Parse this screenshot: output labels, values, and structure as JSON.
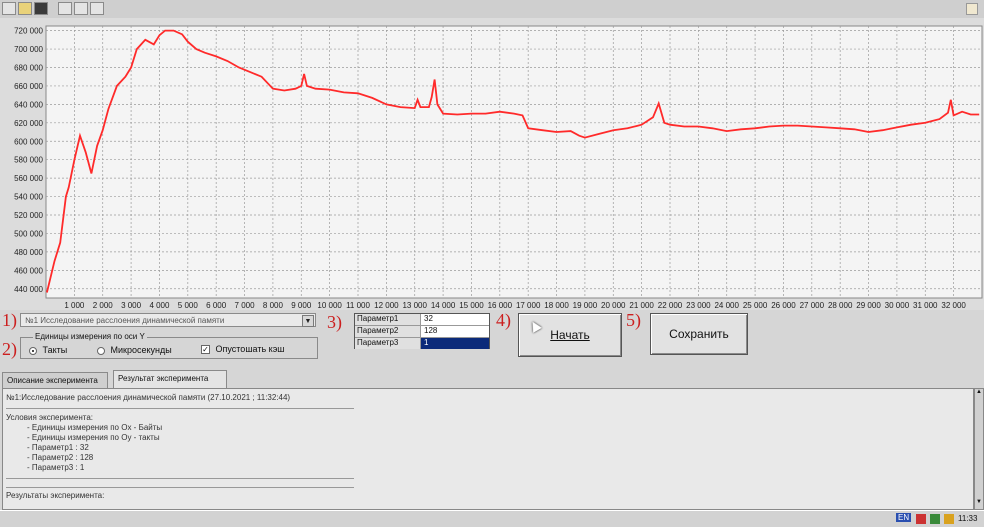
{
  "toolbar": {
    "icons": [
      "new-icon",
      "open-icon",
      "save-icon",
      "window-icon",
      "list-icon",
      "split-icon"
    ]
  },
  "chart_data": {
    "type": "line",
    "title": "",
    "xlabel": "",
    "ylabel": "",
    "grid": true,
    "line_color": "#ff2a2a",
    "xlim": [
      0,
      33000
    ],
    "ylim": [
      430000,
      725000
    ],
    "x_ticks": [
      1000,
      2000,
      3000,
      4000,
      5000,
      6000,
      7000,
      8000,
      9000,
      10000,
      11000,
      12000,
      13000,
      14000,
      15000,
      16000,
      17000,
      18000,
      19000,
      20000,
      21000,
      22000,
      23000,
      24000,
      25000,
      26000,
      27000,
      28000,
      29000,
      30000,
      31000,
      32000
    ],
    "x_tick_labels": [
      "1 000",
      "2 000",
      "3 000",
      "4 000",
      "5 000",
      "6 000",
      "7 000",
      "8 000",
      "9 000",
      "10 000",
      "11 000",
      "12 000",
      "13 000",
      "14 000",
      "15 000",
      "16 000",
      "17 000",
      "18 000",
      "19 000",
      "20 000",
      "21 000",
      "22 000",
      "23 000",
      "24 000",
      "25 000",
      "26 000",
      "27 000",
      "28 000",
      "29 000",
      "30 000",
      "31 000",
      "32 000"
    ],
    "y_ticks": [
      440000,
      460000,
      480000,
      500000,
      520000,
      540000,
      560000,
      580000,
      600000,
      620000,
      640000,
      660000,
      680000,
      700000,
      720000
    ],
    "y_tick_labels": [
      "440 000",
      "460 000",
      "480 000",
      "500 000",
      "520 000",
      "540 000",
      "560 000",
      "580 000",
      "600 000",
      "620 000",
      "640 000",
      "660 000",
      "680 000",
      "700 000",
      "720 000"
    ],
    "x": [
      32,
      300,
      500,
      700,
      800,
      1000,
      1200,
      1400,
      1600,
      1800,
      2000,
      2200,
      2500,
      2800,
      3000,
      3200,
      3500,
      3800,
      4000,
      4200,
      4500,
      4800,
      5000,
      5300,
      5600,
      6000,
      6400,
      6800,
      7200,
      7600,
      8000,
      8400,
      8800,
      9000,
      9100,
      9200,
      9500,
      10000,
      10500,
      11000,
      11500,
      12000,
      12500,
      13000,
      13100,
      13200,
      13500,
      13600,
      13700,
      13800,
      14000,
      14500,
      15000,
      15500,
      16000,
      16500,
      16800,
      17000,
      17500,
      18000,
      18500,
      18800,
      19000,
      19500,
      20000,
      20500,
      21000,
      21400,
      21600,
      21800,
      22000,
      22500,
      23000,
      23500,
      24000,
      24500,
      25000,
      25500,
      26000,
      26500,
      27000,
      27500,
      28000,
      28500,
      29000,
      29500,
      30000,
      30500,
      31000,
      31500,
      31800,
      31900,
      32000,
      32300,
      32600,
      32900
    ],
    "values": [
      436000,
      470000,
      490000,
      540000,
      550000,
      580000,
      606000,
      588000,
      565000,
      595000,
      612000,
      635000,
      660000,
      670000,
      680000,
      700000,
      710000,
      705000,
      715000,
      720000,
      720000,
      716000,
      708000,
      700000,
      696000,
      692000,
      687000,
      680000,
      675000,
      670000,
      657000,
      655000,
      657000,
      660000,
      673000,
      660000,
      657000,
      656000,
      653000,
      652000,
      647000,
      640000,
      637000,
      636000,
      645000,
      637000,
      637000,
      648000,
      667000,
      640000,
      630000,
      629000,
      630000,
      630000,
      632000,
      630000,
      628000,
      614000,
      612000,
      610000,
      611000,
      606000,
      604000,
      608000,
      612000,
      614000,
      618000,
      626000,
      641000,
      620000,
      618000,
      616000,
      616000,
      614000,
      611000,
      613000,
      614000,
      616000,
      617000,
      617000,
      616000,
      615000,
      614000,
      613000,
      610000,
      612000,
      615000,
      618000,
      620000,
      624000,
      631000,
      645000,
      628000,
      632000,
      629000,
      629000
    ]
  },
  "controls": {
    "experiment_combo": {
      "value": "№1 Исследование расслоения динамической памяти"
    },
    "y_units_group": {
      "legend": "Единицы измерения по оси Y",
      "radio_ticks": "Такты",
      "radio_micro": "Микросекунды",
      "check_clear_cache": "Опустошать кэш"
    },
    "params": [
      {
        "name": "Параметр1",
        "value": "32"
      },
      {
        "name": "Параметр2",
        "value": "128"
      },
      {
        "name": "Параметр3",
        "value": "1"
      }
    ],
    "start_button": "Начать",
    "save_button": "Сохранить"
  },
  "markers": [
    "1)",
    "2)",
    "3)",
    "4)",
    "5)"
  ],
  "tabs": [
    "Описание эксперимента",
    "Результат эксперимента"
  ],
  "results": {
    "header": "№1:Исследование расслоения динамической памяти (27.10.2021 ; 11:32:44)",
    "conditions_title": "Условия эксперимента:",
    "lines": [
      "- Единицы измерения по Ox - Байты",
      "- Единицы измерения по Oy - такты",
      "- Параметр1    :    32",
      "- Параметр2    :    128",
      "- Параметр3    :    1"
    ],
    "results_title": "Результаты эксперимента:"
  },
  "taskbar": {
    "lang": "EN",
    "time": "11:33"
  }
}
